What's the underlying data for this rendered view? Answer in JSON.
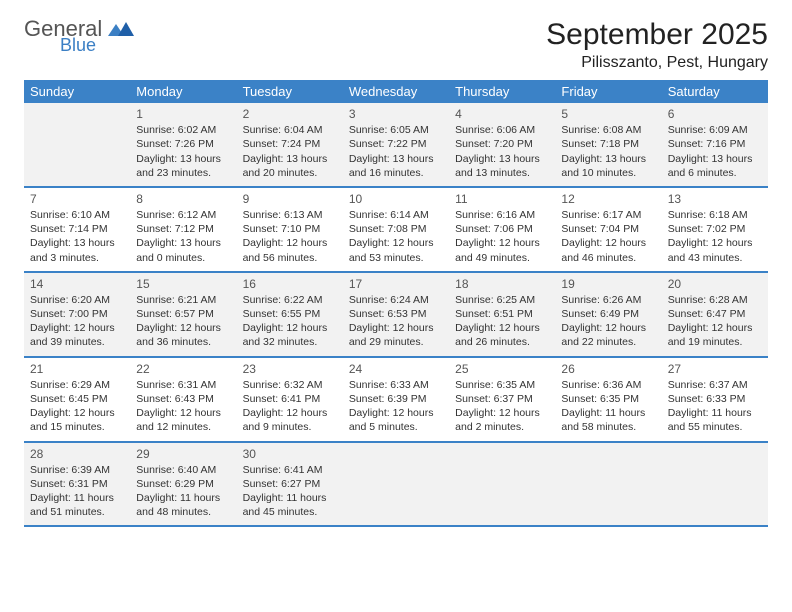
{
  "logo": {
    "general": "General",
    "blue": "Blue"
  },
  "title": "September 2025",
  "location": "Pilisszanto, Pest, Hungary",
  "colors": {
    "header_bg": "#3b82c7",
    "header_text": "#ffffff",
    "shade_bg": "#f2f2f2",
    "logo_blue": "#3b7fc4",
    "border": "#3b82c7"
  },
  "dow": [
    "Sunday",
    "Monday",
    "Tuesday",
    "Wednesday",
    "Thursday",
    "Friday",
    "Saturday"
  ],
  "weeks": [
    {
      "shade": true,
      "days": [
        null,
        {
          "n": "1",
          "sunrise": "Sunrise: 6:02 AM",
          "sunset": "Sunset: 7:26 PM",
          "day1": "Daylight: 13 hours",
          "day2": "and 23 minutes."
        },
        {
          "n": "2",
          "sunrise": "Sunrise: 6:04 AM",
          "sunset": "Sunset: 7:24 PM",
          "day1": "Daylight: 13 hours",
          "day2": "and 20 minutes."
        },
        {
          "n": "3",
          "sunrise": "Sunrise: 6:05 AM",
          "sunset": "Sunset: 7:22 PM",
          "day1": "Daylight: 13 hours",
          "day2": "and 16 minutes."
        },
        {
          "n": "4",
          "sunrise": "Sunrise: 6:06 AM",
          "sunset": "Sunset: 7:20 PM",
          "day1": "Daylight: 13 hours",
          "day2": "and 13 minutes."
        },
        {
          "n": "5",
          "sunrise": "Sunrise: 6:08 AM",
          "sunset": "Sunset: 7:18 PM",
          "day1": "Daylight: 13 hours",
          "day2": "and 10 minutes."
        },
        {
          "n": "6",
          "sunrise": "Sunrise: 6:09 AM",
          "sunset": "Sunset: 7:16 PM",
          "day1": "Daylight: 13 hours",
          "day2": "and 6 minutes."
        }
      ]
    },
    {
      "shade": false,
      "days": [
        {
          "n": "7",
          "sunrise": "Sunrise: 6:10 AM",
          "sunset": "Sunset: 7:14 PM",
          "day1": "Daylight: 13 hours",
          "day2": "and 3 minutes."
        },
        {
          "n": "8",
          "sunrise": "Sunrise: 6:12 AM",
          "sunset": "Sunset: 7:12 PM",
          "day1": "Daylight: 13 hours",
          "day2": "and 0 minutes."
        },
        {
          "n": "9",
          "sunrise": "Sunrise: 6:13 AM",
          "sunset": "Sunset: 7:10 PM",
          "day1": "Daylight: 12 hours",
          "day2": "and 56 minutes."
        },
        {
          "n": "10",
          "sunrise": "Sunrise: 6:14 AM",
          "sunset": "Sunset: 7:08 PM",
          "day1": "Daylight: 12 hours",
          "day2": "and 53 minutes."
        },
        {
          "n": "11",
          "sunrise": "Sunrise: 6:16 AM",
          "sunset": "Sunset: 7:06 PM",
          "day1": "Daylight: 12 hours",
          "day2": "and 49 minutes."
        },
        {
          "n": "12",
          "sunrise": "Sunrise: 6:17 AM",
          "sunset": "Sunset: 7:04 PM",
          "day1": "Daylight: 12 hours",
          "day2": "and 46 minutes."
        },
        {
          "n": "13",
          "sunrise": "Sunrise: 6:18 AM",
          "sunset": "Sunset: 7:02 PM",
          "day1": "Daylight: 12 hours",
          "day2": "and 43 minutes."
        }
      ]
    },
    {
      "shade": true,
      "days": [
        {
          "n": "14",
          "sunrise": "Sunrise: 6:20 AM",
          "sunset": "Sunset: 7:00 PM",
          "day1": "Daylight: 12 hours",
          "day2": "and 39 minutes."
        },
        {
          "n": "15",
          "sunrise": "Sunrise: 6:21 AM",
          "sunset": "Sunset: 6:57 PM",
          "day1": "Daylight: 12 hours",
          "day2": "and 36 minutes."
        },
        {
          "n": "16",
          "sunrise": "Sunrise: 6:22 AM",
          "sunset": "Sunset: 6:55 PM",
          "day1": "Daylight: 12 hours",
          "day2": "and 32 minutes."
        },
        {
          "n": "17",
          "sunrise": "Sunrise: 6:24 AM",
          "sunset": "Sunset: 6:53 PM",
          "day1": "Daylight: 12 hours",
          "day2": "and 29 minutes."
        },
        {
          "n": "18",
          "sunrise": "Sunrise: 6:25 AM",
          "sunset": "Sunset: 6:51 PM",
          "day1": "Daylight: 12 hours",
          "day2": "and 26 minutes."
        },
        {
          "n": "19",
          "sunrise": "Sunrise: 6:26 AM",
          "sunset": "Sunset: 6:49 PM",
          "day1": "Daylight: 12 hours",
          "day2": "and 22 minutes."
        },
        {
          "n": "20",
          "sunrise": "Sunrise: 6:28 AM",
          "sunset": "Sunset: 6:47 PM",
          "day1": "Daylight: 12 hours",
          "day2": "and 19 minutes."
        }
      ]
    },
    {
      "shade": false,
      "days": [
        {
          "n": "21",
          "sunrise": "Sunrise: 6:29 AM",
          "sunset": "Sunset: 6:45 PM",
          "day1": "Daylight: 12 hours",
          "day2": "and 15 minutes."
        },
        {
          "n": "22",
          "sunrise": "Sunrise: 6:31 AM",
          "sunset": "Sunset: 6:43 PM",
          "day1": "Daylight: 12 hours",
          "day2": "and 12 minutes."
        },
        {
          "n": "23",
          "sunrise": "Sunrise: 6:32 AM",
          "sunset": "Sunset: 6:41 PM",
          "day1": "Daylight: 12 hours",
          "day2": "and 9 minutes."
        },
        {
          "n": "24",
          "sunrise": "Sunrise: 6:33 AM",
          "sunset": "Sunset: 6:39 PM",
          "day1": "Daylight: 12 hours",
          "day2": "and 5 minutes."
        },
        {
          "n": "25",
          "sunrise": "Sunrise: 6:35 AM",
          "sunset": "Sunset: 6:37 PM",
          "day1": "Daylight: 12 hours",
          "day2": "and 2 minutes."
        },
        {
          "n": "26",
          "sunrise": "Sunrise: 6:36 AM",
          "sunset": "Sunset: 6:35 PM",
          "day1": "Daylight: 11 hours",
          "day2": "and 58 minutes."
        },
        {
          "n": "27",
          "sunrise": "Sunrise: 6:37 AM",
          "sunset": "Sunset: 6:33 PM",
          "day1": "Daylight: 11 hours",
          "day2": "and 55 minutes."
        }
      ]
    },
    {
      "shade": true,
      "days": [
        {
          "n": "28",
          "sunrise": "Sunrise: 6:39 AM",
          "sunset": "Sunset: 6:31 PM",
          "day1": "Daylight: 11 hours",
          "day2": "and 51 minutes."
        },
        {
          "n": "29",
          "sunrise": "Sunrise: 6:40 AM",
          "sunset": "Sunset: 6:29 PM",
          "day1": "Daylight: 11 hours",
          "day2": "and 48 minutes."
        },
        {
          "n": "30",
          "sunrise": "Sunrise: 6:41 AM",
          "sunset": "Sunset: 6:27 PM",
          "day1": "Daylight: 11 hours",
          "day2": "and 45 minutes."
        },
        null,
        null,
        null,
        null
      ]
    }
  ]
}
